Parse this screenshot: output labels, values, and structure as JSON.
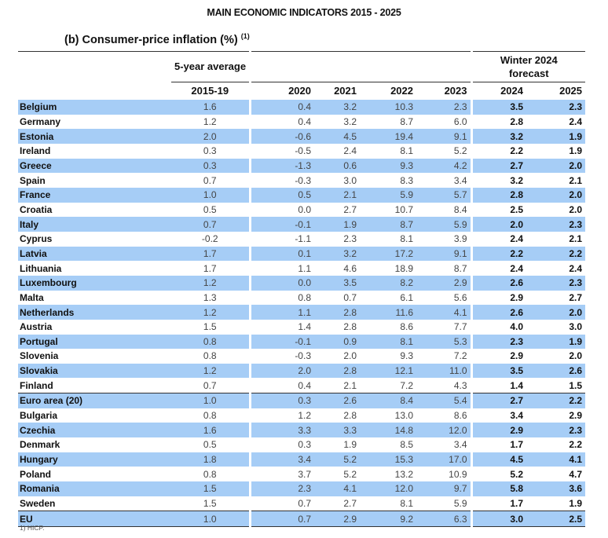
{
  "title": "MAIN ECONOMIC INDICATORS 2015 - 2025",
  "subtitle": "(b) Consumer-price inflation (%)",
  "subtitle_note": "(1)",
  "header": {
    "avg_group": "5-year average",
    "forecast_group_line1": "Winter 2024",
    "forecast_group_line2": "forecast",
    "columns": [
      "2015-19",
      "2020",
      "2021",
      "2022",
      "2023",
      "2024",
      "2025"
    ]
  },
  "rows": [
    [
      "Belgium",
      "1.6",
      "0.4",
      "3.2",
      "10.3",
      "2.3",
      "3.5",
      "2.3"
    ],
    [
      "Germany",
      "1.2",
      "0.4",
      "3.2",
      "8.7",
      "6.0",
      "2.8",
      "2.4"
    ],
    [
      "Estonia",
      "2.0",
      "-0.6",
      "4.5",
      "19.4",
      "9.1",
      "3.2",
      "1.9"
    ],
    [
      "Ireland",
      "0.3",
      "-0.5",
      "2.4",
      "8.1",
      "5.2",
      "2.2",
      "1.9"
    ],
    [
      "Greece",
      "0.3",
      "-1.3",
      "0.6",
      "9.3",
      "4.2",
      "2.7",
      "2.0"
    ],
    [
      "Spain",
      "0.7",
      "-0.3",
      "3.0",
      "8.3",
      "3.4",
      "3.2",
      "2.1"
    ],
    [
      "France",
      "1.0",
      "0.5",
      "2.1",
      "5.9",
      "5.7",
      "2.8",
      "2.0"
    ],
    [
      "Croatia",
      "0.5",
      "0.0",
      "2.7",
      "10.7",
      "8.4",
      "2.5",
      "2.0"
    ],
    [
      "Italy",
      "0.7",
      "-0.1",
      "1.9",
      "8.7",
      "5.9",
      "2.0",
      "2.3"
    ],
    [
      "Cyprus",
      "-0.2",
      "-1.1",
      "2.3",
      "8.1",
      "3.9",
      "2.4",
      "2.1"
    ],
    [
      "Latvia",
      "1.7",
      "0.1",
      "3.2",
      "17.2",
      "9.1",
      "2.2",
      "2.2"
    ],
    [
      "Lithuania",
      "1.7",
      "1.1",
      "4.6",
      "18.9",
      "8.7",
      "2.4",
      "2.4"
    ],
    [
      "Luxembourg",
      "1.2",
      "0.0",
      "3.5",
      "8.2",
      "2.9",
      "2.6",
      "2.3"
    ],
    [
      "Malta",
      "1.3",
      "0.8",
      "0.7",
      "6.1",
      "5.6",
      "2.9",
      "2.7"
    ],
    [
      "Netherlands",
      "1.2",
      "1.1",
      "2.8",
      "11.6",
      "4.1",
      "2.6",
      "2.0"
    ],
    [
      "Austria",
      "1.5",
      "1.4",
      "2.8",
      "8.6",
      "7.7",
      "4.0",
      "3.0"
    ],
    [
      "Portugal",
      "0.8",
      "-0.1",
      "0.9",
      "8.1",
      "5.3",
      "2.3",
      "1.9"
    ],
    [
      "Slovenia",
      "0.8",
      "-0.3",
      "2.0",
      "9.3",
      "7.2",
      "2.9",
      "2.0"
    ],
    [
      "Slovakia",
      "1.2",
      "2.0",
      "2.8",
      "12.1",
      "11.0",
      "3.5",
      "2.6"
    ],
    [
      "Finland",
      "0.7",
      "0.4",
      "2.1",
      "7.2",
      "4.3",
      "1.4",
      "1.5"
    ],
    [
      "Euro area (20)",
      "1.0",
      "0.3",
      "2.6",
      "8.4",
      "5.4",
      "2.7",
      "2.2"
    ],
    [
      "Bulgaria",
      "0.8",
      "1.2",
      "2.8",
      "13.0",
      "8.6",
      "3.4",
      "2.9"
    ],
    [
      "Czechia",
      "1.6",
      "3.3",
      "3.3",
      "14.8",
      "12.0",
      "2.9",
      "2.3"
    ],
    [
      "Denmark",
      "0.5",
      "0.3",
      "1.9",
      "8.5",
      "3.4",
      "1.7",
      "2.2"
    ],
    [
      "Hungary",
      "1.8",
      "3.4",
      "5.2",
      "15.3",
      "17.0",
      "4.5",
      "4.1"
    ],
    [
      "Poland",
      "0.8",
      "3.7",
      "5.2",
      "13.2",
      "10.9",
      "5.2",
      "4.7"
    ],
    [
      "Romania",
      "1.5",
      "2.3",
      "4.1",
      "12.0",
      "9.7",
      "5.8",
      "3.6"
    ],
    [
      "Sweden",
      "1.5",
      "0.7",
      "2.7",
      "8.1",
      "5.9",
      "1.7",
      "1.9"
    ],
    [
      "EU",
      "1.0",
      "0.7",
      "2.9",
      "9.2",
      "6.3",
      "3.0",
      "2.5"
    ]
  ],
  "footnote": "1) HICP.",
  "colors": {
    "row_highlight": "#a6cdf6",
    "rule": "#333333"
  }
}
